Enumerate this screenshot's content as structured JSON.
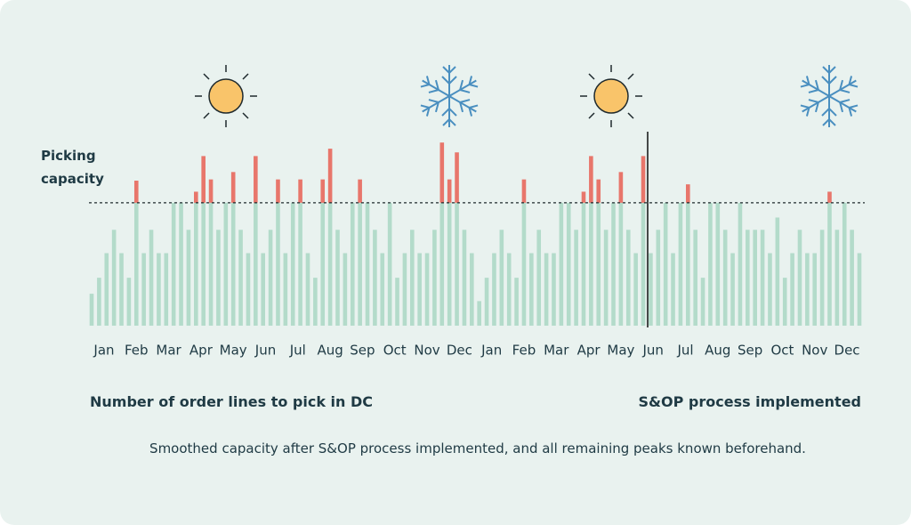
{
  "chart_data": {
    "type": "bar",
    "stacked": true,
    "capacity_label": "Picking capacity",
    "capacity": 100,
    "ylim": [
      0,
      160
    ],
    "month_labels": [
      "Jan",
      "Feb",
      "Mar",
      "Apr",
      "May",
      "Jun",
      "Jul",
      "Aug",
      "Sep",
      "Oct",
      "Nov",
      "Dec",
      "Jan",
      "Feb",
      "Mar",
      "Apr",
      "May",
      "Jun",
      "Jul",
      "Aug",
      "Sep",
      "Oct",
      "Nov",
      "Dec"
    ],
    "series": [
      {
        "color": "#b3dbca",
        "values": [
          26,
          39,
          59,
          78,
          59,
          39,
          100,
          59,
          78,
          59,
          59,
          100,
          100,
          78,
          100,
          100,
          100,
          78,
          100,
          100,
          78,
          59,
          100,
          59,
          78,
          100,
          59,
          100,
          100,
          59,
          39,
          100,
          100,
          78,
          59,
          100,
          100,
          100,
          78,
          59,
          100,
          39,
          59,
          78,
          59,
          59,
          78,
          100,
          100,
          100,
          78,
          59,
          20,
          39,
          59,
          78,
          59,
          39,
          100,
          59,
          78,
          59,
          59,
          100,
          100,
          78,
          100,
          100,
          100,
          78,
          100,
          100,
          78,
          59,
          100,
          59,
          78,
          100,
          59,
          100,
          100,
          78,
          39,
          100,
          100,
          78,
          59,
          100,
          78,
          78,
          78,
          59,
          88,
          39,
          59,
          78,
          59,
          59,
          78,
          100,
          78,
          100,
          78,
          59
        ]
      },
      {
        "color": "#e8766b",
        "values": [
          0,
          0,
          0,
          0,
          0,
          0,
          18,
          0,
          0,
          0,
          0,
          0,
          0,
          0,
          9,
          38,
          19,
          0,
          0,
          25,
          0,
          0,
          38,
          0,
          0,
          19,
          0,
          0,
          19,
          0,
          0,
          19,
          44,
          0,
          0,
          0,
          19,
          0,
          0,
          0,
          0,
          0,
          0,
          0,
          0,
          0,
          0,
          49,
          19,
          41,
          0,
          0,
          0,
          0,
          0,
          0,
          0,
          0,
          19,
          0,
          0,
          0,
          0,
          0,
          0,
          0,
          9,
          38,
          19,
          0,
          0,
          25,
          0,
          0,
          38,
          0,
          0,
          0,
          0,
          0,
          15,
          0,
          0,
          0,
          0,
          0,
          0,
          0,
          0,
          0,
          0,
          0,
          0,
          0,
          0,
          0,
          0,
          0,
          0,
          9,
          0,
          0,
          0,
          0
        ]
      }
    ],
    "annotations": {
      "left": "Number of order lines to pick in DC",
      "right": "S&OP process implemented"
    },
    "caption": "Smoothed capacity after S&OP process implemented, and all remaining peaks known beforehand."
  }
}
